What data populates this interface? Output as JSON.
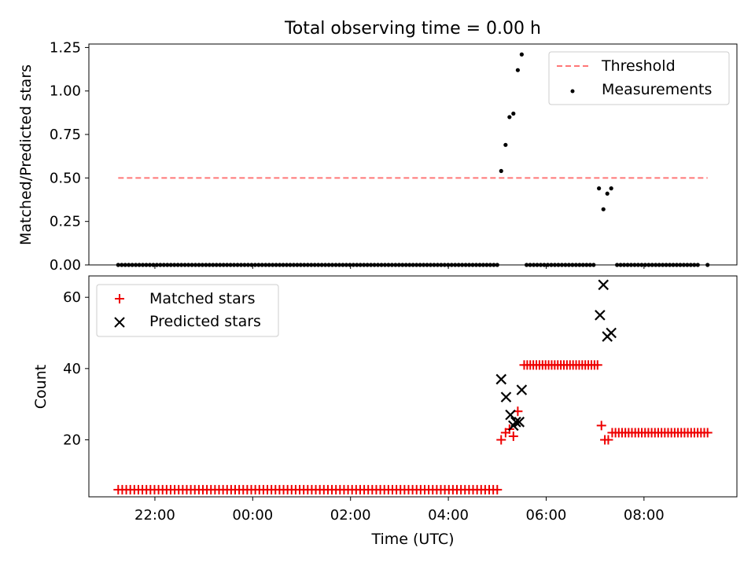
{
  "chart_data": {
    "title": "Total observing time = 0.00 h",
    "xlabel": "Time (UTC)",
    "x_unit": "hours (UTC, continuing past midnight)",
    "xlim": [
      20.65,
      33.9
    ],
    "x_ticks": [
      {
        "value": 22,
        "label": "22:00"
      },
      {
        "value": 24,
        "label": "00:00"
      },
      {
        "value": 26,
        "label": "02:00"
      },
      {
        "value": 28,
        "label": "04:00"
      },
      {
        "value": 30,
        "label": "06:00"
      },
      {
        "value": 32,
        "label": "08:00"
      }
    ],
    "top": {
      "type": "scatter",
      "ylabel": "Matched/Predicted stars",
      "ylim": [
        0,
        1.27
      ],
      "y_ticks": [
        "0.00",
        "0.25",
        "0.50",
        "0.75",
        "1.00",
        "1.25"
      ],
      "legend": {
        "position": "top-right",
        "entries": [
          "Threshold",
          "Measurements"
        ]
      },
      "threshold": {
        "name": "Threshold",
        "value": 0.5,
        "x_range": [
          21.25,
          33.3
        ],
        "color": "#ff7777"
      },
      "measurements": {
        "name": "Measurements",
        "color": "#000000",
        "zeros_before": {
          "start": 21.25,
          "end": 29.0,
          "count": 109
        },
        "peak": [
          [
            29.08,
            0.54
          ],
          [
            29.17,
            0.69
          ],
          [
            29.25,
            0.85
          ],
          [
            29.33,
            0.87
          ],
          [
            29.42,
            1.12
          ],
          [
            29.5,
            1.21
          ]
        ],
        "zeros_middle": {
          "start": 29.6,
          "end": 30.97,
          "count": 20
        },
        "dip": [
          [
            31.08,
            0.44
          ],
          [
            31.17,
            0.32
          ],
          [
            31.25,
            0.41
          ],
          [
            31.33,
            0.44
          ]
        ],
        "zeros_after": {
          "start": 31.45,
          "end": 33.1,
          "count": 24
        },
        "last": [
          [
            33.3,
            0.0
          ]
        ]
      }
    },
    "bottom": {
      "type": "scatter",
      "ylabel": "Count",
      "ylim": [
        4,
        66
      ],
      "y_ticks": [
        "20",
        "40",
        "60"
      ],
      "legend": {
        "position": "top-left",
        "entries": [
          "Matched stars",
          "Predicted stars"
        ]
      },
      "matched": {
        "name": "Matched stars",
        "color": "#ee0000",
        "flat_low": {
          "start": 21.25,
          "end": 29.0,
          "count": 95,
          "value": 6
        },
        "rise": [
          [
            29.08,
            20
          ],
          [
            29.17,
            22
          ],
          [
            29.25,
            23
          ],
          [
            29.33,
            21
          ],
          [
            29.42,
            28
          ]
        ],
        "flat_mid": {
          "start": 29.55,
          "end": 31.05,
          "count": 25,
          "value": 41
        },
        "drop": [
          [
            31.13,
            24
          ],
          [
            31.2,
            20
          ],
          [
            31.27,
            20
          ]
        ],
        "flat_high": {
          "start": 31.35,
          "end": 33.3,
          "count": 30,
          "value": 22
        }
      },
      "predicted": {
        "name": "Predicted stars",
        "color": "#000000",
        "points": [
          [
            29.08,
            37
          ],
          [
            29.18,
            32
          ],
          [
            29.27,
            27
          ],
          [
            29.33,
            24
          ],
          [
            29.38,
            25
          ],
          [
            29.45,
            25
          ],
          [
            29.5,
            34
          ],
          [
            31.1,
            55
          ],
          [
            31.17,
            63.5
          ],
          [
            31.25,
            49
          ],
          [
            31.33,
            50
          ]
        ]
      }
    }
  }
}
